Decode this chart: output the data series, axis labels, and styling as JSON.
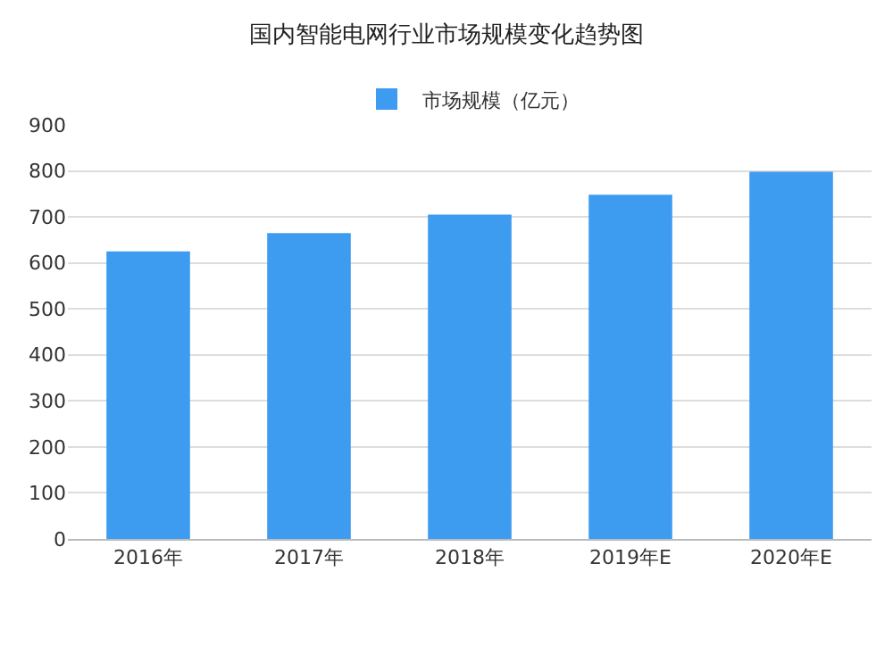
{
  "chart_data": {
    "type": "bar",
    "title": "国内智能电网行业市场规模变化趋势图",
    "categories": [
      "2016年",
      "2017年",
      "2018年",
      "2019年E",
      "2020年E"
    ],
    "series": [
      {
        "name": "市场规模（亿元）",
        "color": "#3d9cf0",
        "values": [
          625,
          665,
          705,
          748,
          798
        ]
      }
    ],
    "ylim": [
      0,
      900
    ],
    "yticks": [
      0,
      100,
      200,
      300,
      400,
      500,
      600,
      700,
      800,
      900
    ],
    "grid": "y",
    "legend": "top"
  }
}
